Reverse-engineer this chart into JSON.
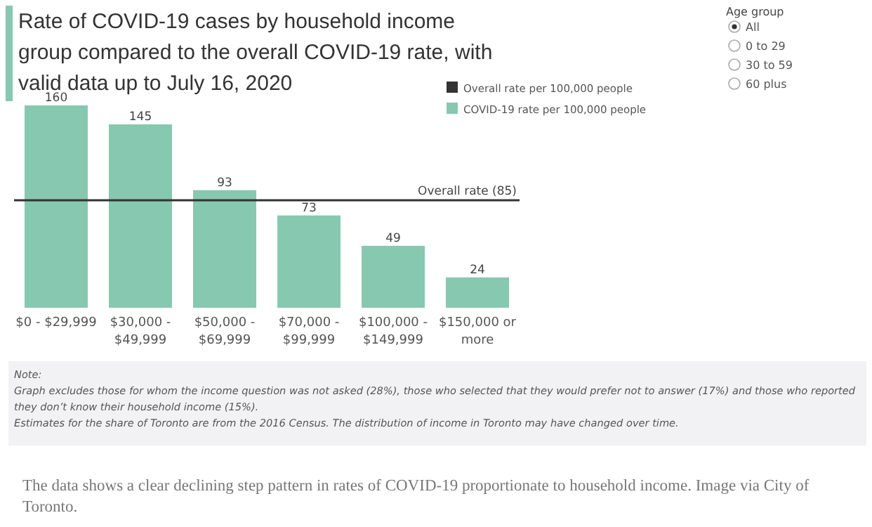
{
  "chart_data": {
    "type": "bar",
    "title": "Rate of COVID-19 cases by household income group compared to the overall COVID-19 rate, with valid data up to July 16, 2020",
    "categories": [
      "$0 - $29,999",
      "$30,000 - $49,999",
      "$50,000 - $69,999",
      "$70,000 - $99,999",
      "$100,000 - $149,999",
      "$150,000 or more"
    ],
    "series": [
      {
        "name": "COVID-19 rate per 100,000 people",
        "color": "#86c8b0",
        "values": [
          160,
          145,
          93,
          73,
          49,
          24
        ]
      }
    ],
    "data_labels": true,
    "legend": "top right",
    "ref_lines": [
      {
        "axis": "y",
        "value": 85,
        "label": "Overall rate (85)",
        "color": "#333333"
      }
    ],
    "annotations": [
      "Overall rate per 100,000 people",
      "Age group",
      "All",
      "0 to 29",
      "30 to 59",
      "60 plus",
      "Note:",
      "Graph excludes those for whom the income question was not asked (28%), those who selected that they would prefer not to answer (17%) and those who reported they don’t know their household income (15%).",
      "Estimates for the share of Toronto are from the 2016 Census. The distribution of income in Toronto may have changed over time.",
      "The data shows a clear declining step pattern in rates of COVID-19 proportionate to household income. Image via City of Toronto."
    ]
  }
}
